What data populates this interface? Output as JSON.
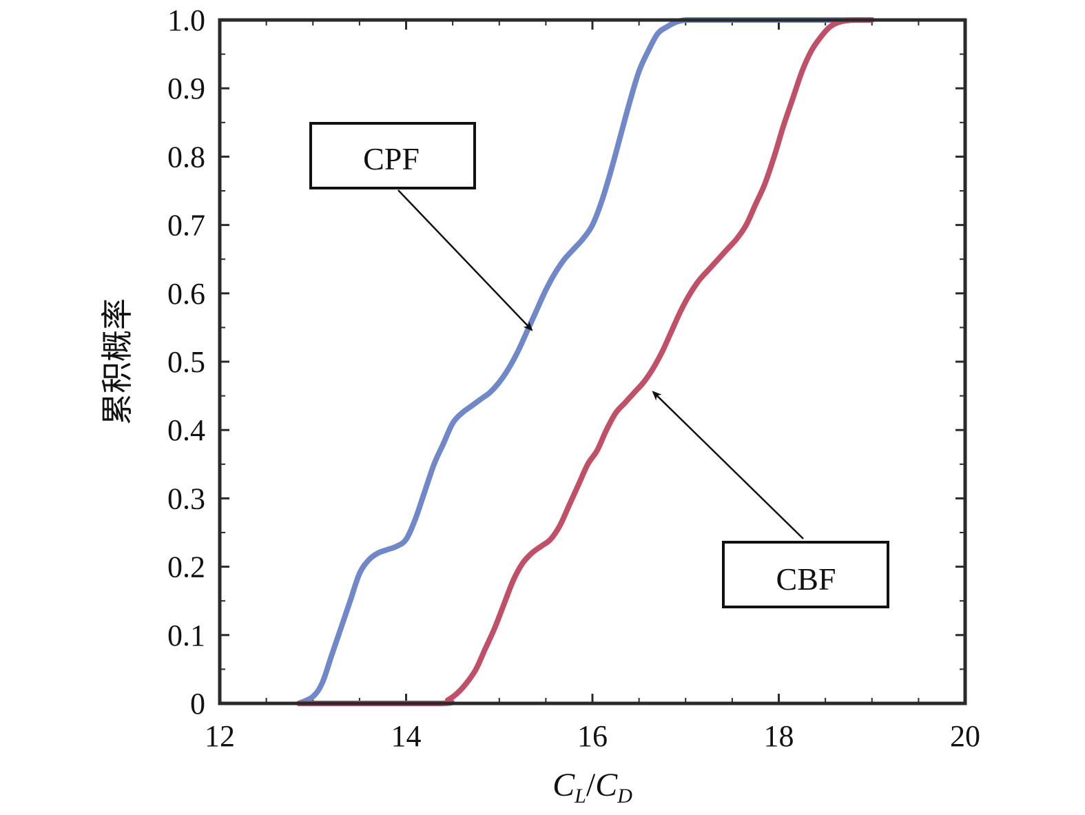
{
  "chart_data": {
    "type": "line",
    "title": "",
    "xlabel": {
      "main1": "C",
      "sub1": "L",
      "slash": "/",
      "main2": "C",
      "sub2": "D"
    },
    "ylabel": "累积概率",
    "xlim": [
      12,
      20
    ],
    "ylim": [
      0,
      1
    ],
    "xticks": [
      12,
      14,
      16,
      18,
      20
    ],
    "xtick_labels": [
      "12",
      "14",
      "16",
      "18",
      "20"
    ],
    "yticks": [
      0,
      0.1,
      0.2,
      0.3,
      0.4,
      0.5,
      0.6,
      0.7,
      0.8,
      0.9,
      1.0
    ],
    "ytick_labels": [
      "0",
      "0.1",
      "0.2",
      "0.3",
      "0.4",
      "0.5",
      "0.6",
      "0.7",
      "0.8",
      "0.9",
      "1.0"
    ],
    "grid": false,
    "series": [
      {
        "name": "CPF",
        "color": "#7088c8",
        "x": [
          12.85,
          13.0,
          13.1,
          13.2,
          13.3,
          13.4,
          13.5,
          13.6,
          13.7,
          13.8,
          13.9,
          14.0,
          14.1,
          14.2,
          14.3,
          14.4,
          14.5,
          14.6,
          14.7,
          14.8,
          14.9,
          15.0,
          15.1,
          15.2,
          15.3,
          15.4,
          15.5,
          15.6,
          15.7,
          15.8,
          15.9,
          16.0,
          16.1,
          16.2,
          16.3,
          16.4,
          16.5,
          16.6,
          16.7,
          16.8,
          16.9,
          17.0,
          17.1,
          17.2,
          19.0
        ],
        "y": [
          0.0,
          0.01,
          0.03,
          0.07,
          0.11,
          0.15,
          0.19,
          0.21,
          0.22,
          0.225,
          0.23,
          0.24,
          0.27,
          0.31,
          0.35,
          0.38,
          0.41,
          0.425,
          0.435,
          0.445,
          0.455,
          0.47,
          0.49,
          0.515,
          0.545,
          0.575,
          0.605,
          0.63,
          0.65,
          0.665,
          0.68,
          0.7,
          0.735,
          0.78,
          0.83,
          0.88,
          0.925,
          0.955,
          0.98,
          0.99,
          0.997,
          1.0,
          1.0,
          1.0,
          1.0
        ]
      },
      {
        "name": "CBF",
        "color": "#c05068",
        "x": [
          12.85,
          14.35,
          14.45,
          14.55,
          14.65,
          14.75,
          14.85,
          14.95,
          15.05,
          15.15,
          15.25,
          15.35,
          15.45,
          15.55,
          15.65,
          15.75,
          15.85,
          15.95,
          16.05,
          16.15,
          16.25,
          16.35,
          16.45,
          16.55,
          16.65,
          16.75,
          16.85,
          16.95,
          17.05,
          17.15,
          17.25,
          17.35,
          17.45,
          17.55,
          17.65,
          17.75,
          17.85,
          17.95,
          18.05,
          18.15,
          18.25,
          18.35,
          18.45,
          18.55,
          18.65,
          18.8,
          19.0
        ],
        "y": [
          0.0,
          0.0,
          0.005,
          0.015,
          0.03,
          0.05,
          0.08,
          0.11,
          0.145,
          0.18,
          0.205,
          0.22,
          0.23,
          0.24,
          0.26,
          0.29,
          0.32,
          0.35,
          0.37,
          0.4,
          0.425,
          0.44,
          0.455,
          0.47,
          0.49,
          0.515,
          0.545,
          0.575,
          0.6,
          0.62,
          0.635,
          0.65,
          0.665,
          0.68,
          0.7,
          0.73,
          0.76,
          0.8,
          0.845,
          0.885,
          0.925,
          0.955,
          0.975,
          0.99,
          0.997,
          1.0,
          1.0
        ]
      }
    ],
    "annotations": [
      {
        "text": "CPF",
        "target_x": 15.35,
        "target_y": 0.52
      },
      {
        "text": "CBF",
        "target_x": 16.65,
        "target_y": 0.46
      }
    ]
  }
}
